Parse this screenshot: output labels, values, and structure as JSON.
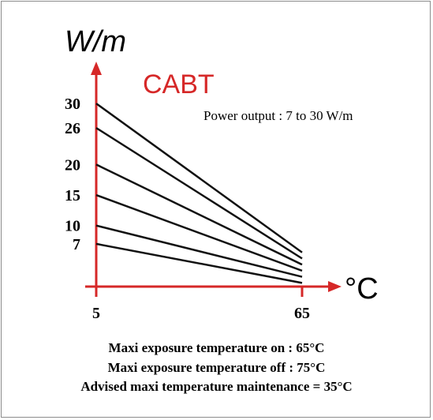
{
  "chart_data": {
    "type": "line",
    "title": "CABT",
    "ylabel": "W/m",
    "xlabel": "°C",
    "annotation": "Power output : 7 to 30 W/m",
    "x_ticks": [
      "5",
      "65"
    ],
    "y_ticks": [
      "30",
      "26",
      "20",
      "15",
      "10",
      "7"
    ],
    "x": [
      5,
      65
    ],
    "series": [
      {
        "values": [
          30,
          5.6
        ]
      },
      {
        "values": [
          26,
          4.6
        ]
      },
      {
        "values": [
          20,
          3.6
        ]
      },
      {
        "values": [
          15,
          2.6
        ]
      },
      {
        "values": [
          10,
          1.6
        ]
      },
      {
        "values": [
          7,
          0.6
        ]
      }
    ],
    "axis_color": "#d62828",
    "title_color": "#d62828",
    "line_color": "#111111"
  },
  "captions": [
    "Maxi  exposure temperature on : 65°C",
    "Maxi exposure temperature off : 75°C",
    "Advised maxi temperature maintenance = 35°C"
  ]
}
